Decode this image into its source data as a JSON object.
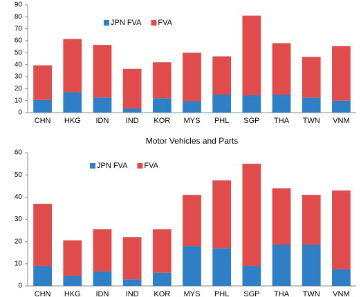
{
  "chart_data": [
    {
      "type": "stacked_bar",
      "categories": [
        "CHN",
        "HKG",
        "IDN",
        "IND",
        "KOR",
        "MYS",
        "PHL",
        "SGP",
        "THA",
        "TWN",
        "VNM"
      ],
      "series": [
        {
          "name": "JPN FVA",
          "color": "#2f7fc6",
          "values": [
            10.5,
            17,
            12.5,
            3.5,
            12,
            9.5,
            15,
            14.5,
            15,
            12.5,
            10
          ]
        },
        {
          "name": "FVA",
          "color": "#e04c4b",
          "values": [
            29,
            44.5,
            44,
            33,
            30,
            40.5,
            32,
            66.5,
            43,
            34,
            45.5
          ]
        }
      ],
      "ylim": [
        0,
        90
      ],
      "yticks": [
        0,
        10,
        20,
        30,
        40,
        50,
        60,
        70,
        80,
        90
      ],
      "grid": false,
      "legend": "top-left"
    },
    {
      "type": "stacked_bar",
      "title": "Motor Vehicles and Parts",
      "categories": [
        "CHN",
        "HKG",
        "IDN",
        "IND",
        "KOR",
        "MYS",
        "PHL",
        "SGP",
        "THA",
        "TWN",
        "VNM"
      ],
      "series": [
        {
          "name": "JPN FVA",
          "color": "#2f7fc6",
          "values": [
            9,
            4.5,
            6.5,
            3,
            6,
            18,
            17,
            9,
            18.5,
            18.5,
            7.5
          ]
        },
        {
          "name": "FVA",
          "color": "#e04c4b",
          "values": [
            28,
            16,
            19,
            19,
            19.5,
            23,
            30.5,
            46,
            25.5,
            22.5,
            35.5
          ]
        }
      ],
      "ylim": [
        0,
        60
      ],
      "yticks": [
        0,
        10,
        20,
        30,
        40,
        50,
        60
      ],
      "grid": false,
      "legend": "top-left"
    }
  ]
}
